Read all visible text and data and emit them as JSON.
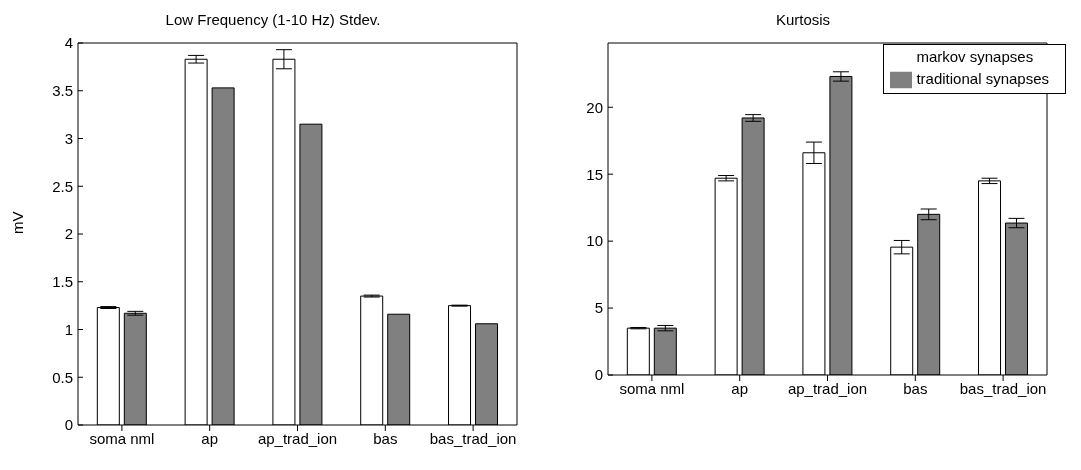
{
  "chart_data": [
    {
      "type": "bar",
      "title": "Low Frequency (1-10 Hz) Stdev.",
      "ylabel": "mV",
      "categories": [
        "soma nml",
        "ap",
        "ap_trad_ion",
        "bas",
        "bas_trad_ion"
      ],
      "series": [
        {
          "color": "#ffffff",
          "values": [
            1.23,
            3.83,
            3.83,
            1.35,
            1.25
          ],
          "errors": [
            0.01,
            0.04,
            0.1,
            0.01,
            0.005
          ]
        },
        {
          "color": "#808080",
          "values": [
            1.17,
            3.53,
            3.15,
            1.16,
            1.06
          ],
          "errors": [
            0.02,
            null,
            null,
            null,
            null
          ]
        }
      ],
      "ylim": [
        0,
        4
      ],
      "yticks": [
        0,
        0.5,
        1,
        1.5,
        2,
        2.5,
        3,
        3.5,
        4
      ],
      "grid": false,
      "legend": false
    },
    {
      "type": "bar",
      "title": "Kurtosis",
      "categories": [
        "soma nml",
        "ap",
        "ap_trad_ion",
        "bas",
        "bas_trad_ion"
      ],
      "series": [
        {
          "name": "markov synapses",
          "color": "#ffffff",
          "values": [
            3.5,
            14.7,
            16.6,
            9.55,
            14.5
          ],
          "errors": [
            0.05,
            0.2,
            0.8,
            0.5,
            0.2
          ]
        },
        {
          "name": "traditional synapses",
          "color": "#808080",
          "values": [
            3.5,
            19.2,
            22.3,
            12.0,
            11.35
          ],
          "errors": [
            0.2,
            0.25,
            0.35,
            0.4,
            0.35
          ]
        }
      ],
      "ylim": [
        0,
        24.8
      ],
      "yticks": [
        0,
        5,
        10,
        15,
        20
      ],
      "grid": false,
      "legend": "top right"
    }
  ]
}
